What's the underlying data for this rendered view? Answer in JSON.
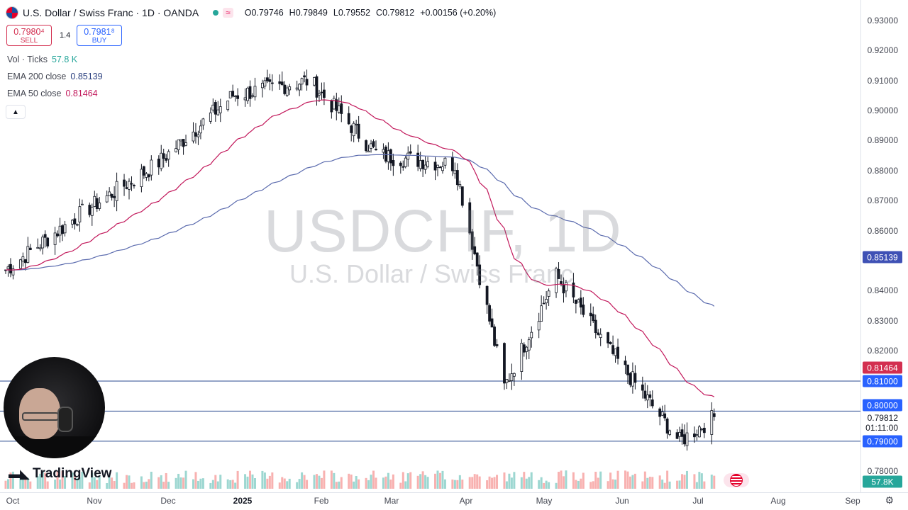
{
  "header": {
    "title": "U.S. Dollar / Swiss Franc · 1D · OANDA",
    "ohlc": [
      {
        "k": "O",
        "v": "0.79746"
      },
      {
        "k": "H",
        "v": "0.79849"
      },
      {
        "k": "L",
        "v": "0.79552"
      },
      {
        "k": "C",
        "v": "0.79812"
      }
    ],
    "change": "+0.00156 (+0.20%)"
  },
  "trade": {
    "sell_price": "0.7980⁴",
    "sell_label": "SELL",
    "spread": "1.4",
    "buy_price": "0.7981⁸",
    "buy_label": "BUY"
  },
  "indicators": [
    {
      "label": "Vol · Ticks",
      "value": "57.8 K",
      "color": "#26a69a"
    },
    {
      "label": "EMA 200 close",
      "value": "0.85139",
      "color": "#2a3f7e"
    },
    {
      "label": "EMA 50 close",
      "value": "0.81464",
      "color": "#c2185b"
    }
  ],
  "watermark": {
    "symbol": "USDCHF, 1D",
    "name": "U.S. Dollar / Swiss Franc"
  },
  "yaxis": {
    "labels": [
      "0.93000",
      "0.92000",
      "0.91000",
      "0.90000",
      "0.89000",
      "0.88000",
      "0.87000",
      "0.86000",
      "0.84000",
      "0.83000",
      "0.82000",
      "0.78000"
    ],
    "tags": [
      {
        "text": "0.85139",
        "color": "#3f51b5"
      },
      {
        "text": "0.81464",
        "color": "#d32f50"
      },
      {
        "text": "0.81000",
        "color": "#2962ff"
      },
      {
        "text": "0.80000",
        "color": "#2962ff"
      },
      {
        "text": "0.79000",
        "color": "#2962ff"
      },
      {
        "text": "57.8K",
        "color": "#26a69a"
      }
    ],
    "last_price": "0.79812",
    "countdown": "01:11:00"
  },
  "xaxis": [
    {
      "label": "Oct",
      "bold": false
    },
    {
      "label": "Nov",
      "bold": false
    },
    {
      "label": "Dec",
      "bold": false
    },
    {
      "label": "2025",
      "bold": true
    },
    {
      "label": "Feb",
      "bold": false
    },
    {
      "label": "Mar",
      "bold": false
    },
    {
      "label": "Apr",
      "bold": false
    },
    {
      "label": "May",
      "bold": false
    },
    {
      "label": "Jun",
      "bold": false
    },
    {
      "label": "Jul",
      "bold": false
    },
    {
      "label": "Aug",
      "bold": false
    },
    {
      "label": "Sep",
      "bold": false
    }
  ],
  "brand": {
    "name": "TradingView"
  },
  "colors": {
    "up": "#26a69a",
    "down": "#ef5350",
    "candle": "#131722",
    "ema200": "#5b6bae",
    "ema50": "#c2185b",
    "hline": "#2a4a8f"
  },
  "chart_data": {
    "type": "candlestick",
    "symbol": "USDCHF",
    "interval": "1D",
    "ylim": [
      0.775,
      0.933
    ],
    "horizontal_lines": [
      0.81,
      0.8,
      0.79
    ],
    "ema200_last": 0.85139,
    "ema50_last": 0.81464,
    "close": 0.79812,
    "volume_last": "57.8K",
    "key_points": [
      {
        "date": "2024-10-01",
        "close": 0.847
      },
      {
        "date": "2024-11-01",
        "close": 0.866
      },
      {
        "date": "2024-12-01",
        "close": 0.882
      },
      {
        "date": "2025-01-01",
        "close": 0.905
      },
      {
        "date": "2025-02-01",
        "close": 0.91
      },
      {
        "date": "2025-03-01",
        "close": 0.885
      },
      {
        "date": "2025-04-01",
        "close": 0.882
      },
      {
        "date": "2025-04-21",
        "close": 0.808
      },
      {
        "date": "2025-05-12",
        "close": 0.845
      },
      {
        "date": "2025-06-01",
        "close": 0.822
      },
      {
        "date": "2025-07-01",
        "close": 0.79
      },
      {
        "date": "2025-07-15",
        "close": 0.798
      }
    ]
  }
}
